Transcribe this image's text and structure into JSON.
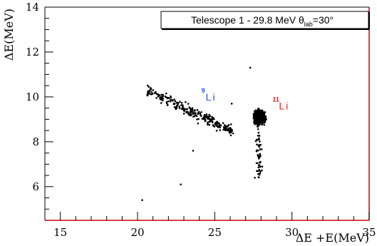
{
  "chart_data": {
    "type": "scatter",
    "title": "Telescope 1 - 29.8 MeV θ lab =30°",
    "title_parts": {
      "main": "Telescope 1 - 29.8 MeV ",
      "theta": "θ",
      "sub": "lab",
      "tail": "=30°"
    },
    "xlabel": "ΔE +E(MeV)",
    "ylabel": "ΔE(MeV)",
    "xlim": [
      14,
      35
    ],
    "ylim": [
      4.5,
      14
    ],
    "xticks": [
      "15",
      "20",
      "25",
      "30",
      "35"
    ],
    "yticks": [
      "6",
      "8",
      "10",
      "12",
      "14"
    ],
    "grid": false,
    "frame_color_bottom": "#cc0000",
    "frame_color_right": "#cc0000",
    "annotations": [
      {
        "mass": "9",
        "symbol": "Li",
        "x": 24.6,
        "y": 10.0,
        "color": "#2255dd"
      },
      {
        "mass": "11",
        "symbol": "Li",
        "x": 29.2,
        "y": 9.6,
        "color": "#dd2222"
      }
    ],
    "series": [
      {
        "cluster": "9Li band",
        "x_range": [
          20.6,
          26.2
        ],
        "y_range": [
          8.3,
          10.3
        ],
        "count": 260,
        "color": "#000000"
      },
      {
        "cluster": "11Li blob",
        "x_center": 27.9,
        "y_center": 9.1,
        "count": 900,
        "color": "#000000"
      },
      {
        "cluster": "11Li tail",
        "x_range": [
          27.5,
          28.2
        ],
        "y_range": [
          6.3,
          8.8
        ],
        "count": 60,
        "color": "#000000"
      },
      {
        "cluster": "isolated points",
        "x": [
          20.3,
          22.8,
          23.6,
          27.3,
          26.1,
          27.6
        ],
        "y": [
          5.4,
          6.1,
          7.6,
          11.3,
          9.7,
          6.4
        ],
        "color": "#000000"
      }
    ]
  }
}
